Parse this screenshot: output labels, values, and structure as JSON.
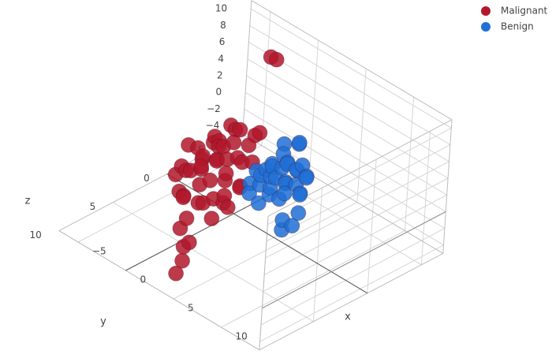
{
  "chart_data": {
    "type": "scatter3d",
    "axes": {
      "x": {
        "title": "x",
        "range": [
          -7,
          14
        ],
        "ticks": [
          -5,
          0,
          5,
          10
        ]
      },
      "y": {
        "title": "y",
        "range": [
          -7,
          10
        ],
        "ticks": [
          -5,
          0,
          5,
          10
        ]
      },
      "z": {
        "title": "z",
        "range": [
          -5,
          11
        ],
        "ticks": [
          -4,
          -2,
          0,
          2,
          4,
          6,
          8,
          10
        ]
      }
    },
    "grid": true,
    "legend_position": "top-right",
    "series": [
      {
        "name": "Malignant",
        "color": "#b2182b",
        "points": [
          [
            -1.5,
            -4.0,
            10.0
          ],
          [
            -2.5,
            -5.5,
            8.0
          ],
          [
            0.5,
            -1.5,
            4.0
          ],
          [
            -1.5,
            -1.5,
            3.0
          ],
          [
            -2.5,
            -2.0,
            2.0
          ],
          [
            -3.0,
            -1.0,
            1.0
          ],
          [
            -1.5,
            0.0,
            2.0
          ],
          [
            -2.5,
            1.0,
            0.5
          ],
          [
            -0.5,
            0.5,
            1.5
          ],
          [
            -3.5,
            0.0,
            -0.5
          ],
          [
            -4.5,
            0.5,
            0.5
          ],
          [
            -3.0,
            2.0,
            -0.5
          ],
          [
            -0.5,
            2.0,
            0.0
          ],
          [
            1.0,
            2.0,
            1.0
          ],
          [
            0.5,
            3.5,
            -1.0
          ],
          [
            -1.5,
            3.5,
            -1.5
          ],
          [
            -2.5,
            3.0,
            -2.0
          ],
          [
            0.0,
            4.5,
            -2.5
          ],
          [
            2.0,
            4.0,
            -1.5
          ],
          [
            2.0,
            6.0,
            -3.0
          ],
          [
            3.0,
            7.5,
            -3.5
          ],
          [
            3.5,
            8.5,
            -4.0
          ],
          [
            2.5,
            7.0,
            -2.5
          ],
          [
            1.0,
            6.0,
            -2.0
          ],
          [
            -1.0,
            1.0,
            1.5
          ],
          [
            -2.0,
            0.5,
            2.5
          ],
          [
            -1.0,
            -0.5,
            2.5
          ],
          [
            0.0,
            1.0,
            0.5
          ],
          [
            -1.0,
            2.5,
            -0.5
          ],
          [
            -2.0,
            1.5,
            0.0
          ],
          [
            -3.0,
            1.0,
            1.5
          ],
          [
            -0.5,
            -0.5,
            1.0
          ],
          [
            0.5,
            0.0,
            1.5
          ],
          [
            1.5,
            1.0,
            0.0
          ],
          [
            1.0,
            3.0,
            -0.5
          ],
          [
            -1.5,
            2.0,
            1.0
          ],
          [
            -2.5,
            -0.5,
            1.0
          ],
          [
            -4.0,
            -1.5,
            0.5
          ],
          [
            -3.5,
            -2.5,
            1.5
          ],
          [
            -1.0,
            -2.5,
            2.0
          ],
          [
            0.0,
            -1.0,
            2.5
          ],
          [
            1.0,
            -0.5,
            1.5
          ],
          [
            -0.5,
            1.5,
            2.0
          ],
          [
            -2.0,
            2.5,
            0.5
          ],
          [
            -4.0,
            1.5,
            -1.0
          ],
          [
            -1.0,
            4.0,
            -1.0
          ],
          [
            1.5,
            2.5,
            -1.0
          ],
          [
            2.5,
            3.0,
            -0.5
          ],
          [
            0.5,
            1.5,
            -1.5
          ],
          [
            -0.5,
            3.0,
            -2.0
          ],
          [
            -3.5,
            2.5,
            -1.0
          ],
          [
            2.0,
            1.5,
            0.5
          ]
        ]
      },
      {
        "name": "Benign",
        "color": "#1f6fd6",
        "points": [
          [
            3.5,
            -2.5,
            4.0
          ],
          [
            3.0,
            -3.0,
            3.5
          ],
          [
            2.0,
            -2.5,
            3.0
          ],
          [
            4.5,
            -2.0,
            2.5
          ],
          [
            5.0,
            -2.0,
            1.5
          ],
          [
            5.5,
            -1.0,
            0.5
          ],
          [
            6.5,
            0.0,
            -0.5
          ],
          [
            7.0,
            1.0,
            -1.0
          ],
          [
            6.5,
            1.5,
            -1.5
          ],
          [
            6.0,
            1.0,
            -1.0
          ],
          [
            3.5,
            1.0,
            1.5
          ],
          [
            4.0,
            0.0,
            2.0
          ],
          [
            2.5,
            -1.0,
            2.0
          ],
          [
            3.0,
            0.5,
            2.0
          ],
          [
            4.5,
            -0.5,
            1.5
          ],
          [
            5.0,
            0.5,
            0.5
          ],
          [
            4.0,
            1.5,
            0.0
          ],
          [
            2.5,
            1.0,
            1.0
          ],
          [
            3.5,
            -1.5,
            2.5
          ],
          [
            2.0,
            0.0,
            1.5
          ],
          [
            5.5,
            -1.5,
            2.0
          ],
          [
            4.0,
            -1.0,
            3.0
          ],
          [
            3.0,
            -1.5,
            1.5
          ],
          [
            4.5,
            1.0,
            1.0
          ],
          [
            5.0,
            0.0,
            2.0
          ],
          [
            3.5,
            0.0,
            0.5
          ],
          [
            2.5,
            -2.0,
            2.5
          ],
          [
            4.0,
            0.5,
            2.5
          ],
          [
            6.0,
            -0.5,
            1.0
          ],
          [
            5.5,
            0.5,
            1.5
          ],
          [
            3.0,
            1.5,
            0.5
          ],
          [
            4.5,
            -1.5,
            0.5
          ],
          [
            2.0,
            -1.5,
            1.0
          ],
          [
            3.5,
            0.5,
            3.0
          ],
          [
            4.0,
            -2.0,
            1.5
          ],
          [
            5.0,
            -1.0,
            3.0
          ]
        ]
      }
    ]
  }
}
